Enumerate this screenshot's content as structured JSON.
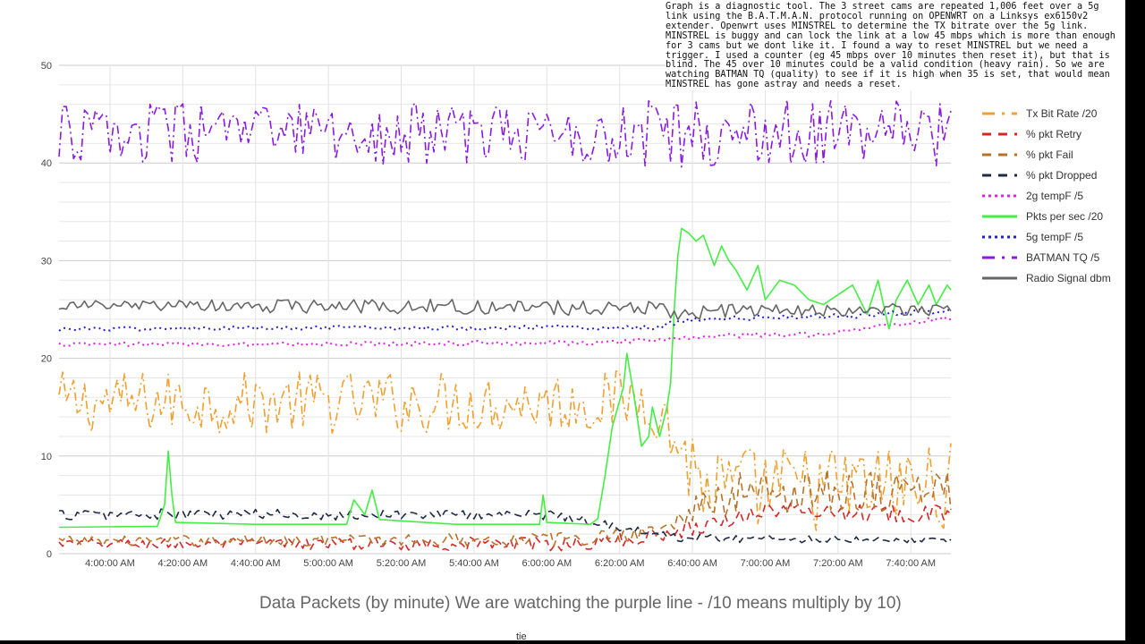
{
  "note_text": "Graph is a diagnostic tool. The 3 street cams are repeated 1,006 feet over a 5g link using the B.A.T.M.A.N. protocol running on OPENWRT on a Linksys ex6150v2 extender. Openwrt uses MINSTREL to determine the TX bitrate over the 5g link. MINSTREL is buggy and can lock the link at a low 45 mbps which is more than enough for 3 cams but we dont like it. I found a way to reset MINSTREL but we need a trigger. I used a counter (eg 45 mbps over 10 minutes then reset it), but that is blind. The 45 over 10 minutes could be a valid condition (heavy rain). So we are watching BATMAN TQ (quality) to see if it is high when 35 is set, that would mean MINSTREL has gone astray and needs a reset.",
  "caption": "Data Packets  (by minute) We are watching the purple line -  /10 means multiply by 10)",
  "x_axis_title": "tie",
  "chart_data": {
    "type": "line",
    "title": "",
    "xlabel": "tie",
    "ylabel": "",
    "ylim": [
      0,
      50
    ],
    "y_ticks": [
      0,
      10,
      20,
      30,
      40,
      50
    ],
    "xlim_minutes": [
      "3:46",
      "7:51"
    ],
    "x_tick_labels": [
      "4:00:00 AM",
      "4:20:00 AM",
      "4:40:00 AM",
      "5:00:00 AM",
      "5:20:00 AM",
      "5:40:00 AM",
      "6:00:00 AM",
      "6:20:00 AM",
      "6:40:00 AM",
      "7:00:00 AM",
      "7:20:00 AM",
      "7:40:00 AM"
    ],
    "grid": true,
    "legend_position": "right",
    "sample_interval": "1 minute",
    "series": [
      {
        "name": "Tx Bit Rate /20",
        "color": "#f0a030",
        "dash": "dash-dot",
        "profile": [
          [
            "3:46",
            15.5
          ],
          [
            "6:15",
            15.5
          ],
          [
            "6:28",
            16.0
          ],
          [
            "6:34",
            12.5
          ],
          [
            "6:44",
            6.5
          ],
          [
            "7:51",
            7.0
          ]
        ],
        "amplitude": [
          [
            "3:46",
            3.2
          ],
          [
            "6:30",
            3.2
          ],
          [
            "6:40",
            4.5
          ],
          [
            "7:51",
            4.5
          ]
        ]
      },
      {
        "name": "% pkt Retry",
        "color": "#d62728",
        "dash": "dashed",
        "profile": [
          [
            "3:46",
            1.0
          ],
          [
            "6:10",
            1.0
          ],
          [
            "6:30",
            1.8
          ],
          [
            "6:50",
            3.5
          ],
          [
            "7:00",
            4.5
          ],
          [
            "7:51",
            4.0
          ]
        ],
        "amplitude": [
          [
            "3:46",
            0.5
          ],
          [
            "6:40",
            0.8
          ],
          [
            "7:51",
            0.9
          ]
        ]
      },
      {
        "name": "% pkt Fail",
        "color": "#b8732a",
        "dash": "dashed",
        "profile": [
          [
            "3:46",
            1.3
          ],
          [
            "6:10",
            1.5
          ],
          [
            "6:30",
            2.4
          ],
          [
            "6:40",
            4.2
          ],
          [
            "6:55",
            6.5
          ],
          [
            "7:51",
            6.5
          ]
        ],
        "amplitude": [
          [
            "3:46",
            0.5
          ],
          [
            "6:35",
            0.8
          ],
          [
            "6:45",
            2.4
          ],
          [
            "7:51",
            2.4
          ]
        ]
      },
      {
        "name": "% pkt Dropped",
        "color": "#1f2a44",
        "dash": "dashed",
        "profile": [
          [
            "3:46",
            4.0
          ],
          [
            "6:00",
            4.0
          ],
          [
            "6:15",
            3.2
          ],
          [
            "6:28",
            2.0
          ],
          [
            "6:40",
            1.6
          ],
          [
            "7:51",
            1.4
          ]
        ],
        "amplitude": [
          [
            "3:46",
            0.6
          ],
          [
            "6:20",
            0.5
          ],
          [
            "7:51",
            0.3
          ]
        ]
      },
      {
        "name": "2g tempF /5",
        "color": "#e020e0",
        "dash": "dotted",
        "profile": [
          [
            "3:46",
            21.4
          ],
          [
            "6:20",
            21.6
          ],
          [
            "6:33",
            22.0
          ],
          [
            "6:50",
            22.3
          ],
          [
            "7:15",
            22.5
          ],
          [
            "7:51",
            24.2
          ]
        ],
        "amplitude": [
          [
            "3:46",
            0.2
          ],
          [
            "7:51",
            0.3
          ]
        ]
      },
      {
        "name": "Pkts per sec /20",
        "color": "#44ee44",
        "dash": "solid",
        "points": [
          [
            "3:46",
            2.7
          ],
          [
            "4:13",
            2.8
          ],
          [
            "4:15",
            5.0
          ],
          [
            "4:16",
            10.5
          ],
          [
            "4:17",
            6.0
          ],
          [
            "4:18",
            3.2
          ],
          [
            "4:40",
            3.0
          ],
          [
            "5:05",
            3.0
          ],
          [
            "5:07",
            5.5
          ],
          [
            "5:10",
            4.0
          ],
          [
            "5:12",
            6.5
          ],
          [
            "5:14",
            3.5
          ],
          [
            "5:35",
            3.0
          ],
          [
            "5:58",
            3.0
          ],
          [
            "5:59",
            6.0
          ],
          [
            "6:00",
            3.2
          ],
          [
            "6:12",
            3.0
          ],
          [
            "6:14",
            3.6
          ],
          [
            "6:16",
            8.0
          ],
          [
            "6:18",
            13.0
          ],
          [
            "6:21",
            17.0
          ],
          [
            "6:22",
            20.5
          ],
          [
            "6:24",
            16.0
          ],
          [
            "6:26",
            11.0
          ],
          [
            "6:28",
            12.0
          ],
          [
            "6:29",
            15.0
          ],
          [
            "6:31",
            12.0
          ],
          [
            "6:33",
            15.0
          ],
          [
            "6:34",
            17.5
          ],
          [
            "6:35",
            25.0
          ],
          [
            "6:36",
            30.5
          ],
          [
            "6:37",
            33.3
          ],
          [
            "6:39",
            32.8
          ],
          [
            "6:41",
            32.0
          ],
          [
            "6:43",
            32.6
          ],
          [
            "6:46",
            29.5
          ],
          [
            "6:48",
            31.5
          ],
          [
            "6:50",
            30.0
          ],
          [
            "6:52",
            29.0
          ],
          [
            "6:55",
            27.0
          ],
          [
            "6:58",
            29.5
          ],
          [
            "7:00",
            26.0
          ],
          [
            "7:04",
            28.0
          ],
          [
            "7:08",
            27.5
          ],
          [
            "7:12",
            26.0
          ],
          [
            "7:16",
            25.5
          ],
          [
            "7:20",
            26.5
          ],
          [
            "7:24",
            27.5
          ],
          [
            "7:28",
            24.5
          ],
          [
            "7:31",
            28.0
          ],
          [
            "7:34",
            23.0
          ],
          [
            "7:36",
            26.0
          ],
          [
            "7:39",
            28.0
          ],
          [
            "7:42",
            25.5
          ],
          [
            "7:45",
            27.5
          ],
          [
            "7:47",
            25.5
          ],
          [
            "7:50",
            27.5
          ],
          [
            "7:51",
            27.0
          ]
        ]
      },
      {
        "name": "5g tempF /5",
        "color": "#2222cc",
        "dash": "dotted",
        "profile": [
          [
            "3:46",
            23.0
          ],
          [
            "6:30",
            23.2
          ],
          [
            "6:40",
            24.0
          ],
          [
            "7:20",
            24.3
          ],
          [
            "7:51",
            25.0
          ]
        ],
        "amplitude": [
          [
            "3:46",
            0.2
          ],
          [
            "7:51",
            0.3
          ]
        ]
      },
      {
        "name": "BATMAN TQ /5",
        "color": "#8a1ae0",
        "dash": "dash-dot",
        "profile": [
          [
            "3:46",
            43.0
          ],
          [
            "7:51",
            43.0
          ]
        ],
        "amplitude": [
          [
            "3:46",
            3.0
          ],
          [
            "7:51",
            3.6
          ]
        ]
      },
      {
        "name": "Radio Signal dbm",
        "color": "#666666",
        "dash": "solid",
        "profile": [
          [
            "3:46",
            25.4
          ],
          [
            "6:30",
            25.2
          ],
          [
            "6:35",
            24.5
          ],
          [
            "6:50",
            24.9
          ],
          [
            "7:51",
            25.0
          ]
        ],
        "amplitude": [
          [
            "3:46",
            0.55
          ],
          [
            "6:30",
            0.9
          ],
          [
            "6:40",
            0.7
          ],
          [
            "7:51",
            0.6
          ]
        ]
      }
    ]
  }
}
